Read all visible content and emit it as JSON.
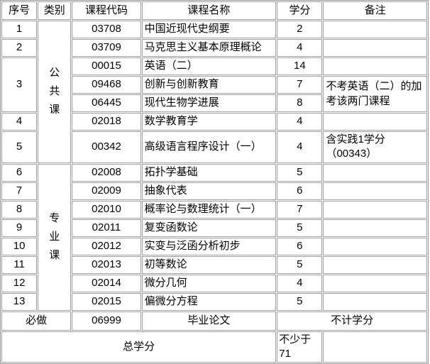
{
  "header": {
    "cols": [
      "序号",
      "类别",
      "课程代码",
      "课程名称",
      "学分",
      "备注"
    ]
  },
  "categories": {
    "public": "公共课",
    "major": "专业课"
  },
  "courses": [
    {
      "no": "1",
      "code": "03708",
      "name": "中国近现代史纲要",
      "credit": "2",
      "note": ""
    },
    {
      "no": "2",
      "code": "03709",
      "name": "马克思主义基本原理概论",
      "credit": "4",
      "note": ""
    },
    {
      "no": "3",
      "code": "00015",
      "name": "英语（二）",
      "credit": "14",
      "note": ""
    },
    {
      "no": "",
      "code": "09468",
      "name": "创新与创新教育",
      "credit": "7",
      "note": "不考英语（二）的加考该两门课程"
    },
    {
      "no": "",
      "code": "06445",
      "name": "现代生物学进展",
      "credit": "8",
      "note": ""
    },
    {
      "no": "4",
      "code": "02018",
      "name": "数学教育学",
      "credit": "4",
      "note": ""
    },
    {
      "no": "5",
      "code": "00342",
      "name": "高级语言程序设计（一）",
      "credit": "4",
      "note": "含实践1学分（00343）"
    },
    {
      "no": "6",
      "code": "02008",
      "name": "拓扑学基础",
      "credit": "5",
      "note": ""
    },
    {
      "no": "7",
      "code": "02009",
      "name": "抽象代表",
      "credit": "6",
      "note": ""
    },
    {
      "no": "8",
      "code": "02010",
      "name": "概率论与数理统计（一）",
      "credit": "7",
      "note": ""
    },
    {
      "no": "9",
      "code": "02011",
      "name": "复变函数论",
      "credit": "5",
      "note": ""
    },
    {
      "no": "10",
      "code": "02012",
      "name": "实变与泛函分析初步",
      "credit": "6",
      "note": ""
    },
    {
      "no": "11",
      "code": "02013",
      "name": "初等数论",
      "credit": "5",
      "note": ""
    },
    {
      "no": "12",
      "code": "02014",
      "name": "微分几何",
      "credit": "4",
      "note": ""
    },
    {
      "no": "13",
      "code": "02015",
      "name": "偏微分方程",
      "credit": "5",
      "note": ""
    }
  ],
  "footer": {
    "required_label": "必做",
    "thesis_code": "06999",
    "thesis_name": "毕业论文",
    "thesis_credit_note": "不计学分",
    "total_label": "总学分",
    "total_value": "不少于71"
  }
}
